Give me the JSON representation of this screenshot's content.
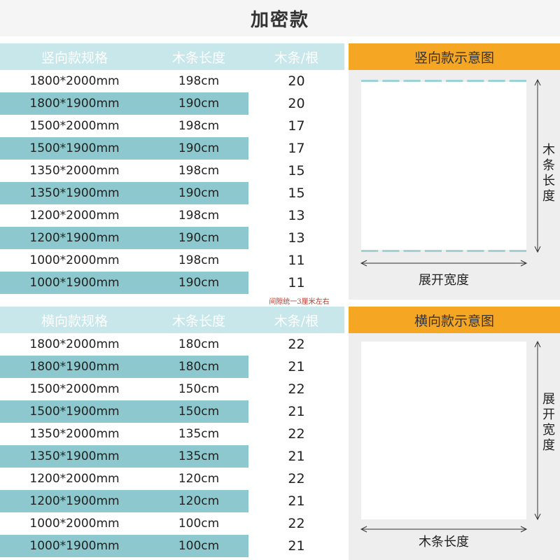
{
  "title": "加密款",
  "vertical": {
    "headers": [
      "竖向款规格",
      "木条长度",
      "木条/根"
    ],
    "rows": [
      [
        "1800*2000mm",
        "198cm",
        "20"
      ],
      [
        "1800*1900mm",
        "190cm",
        "20"
      ],
      [
        "1500*2000mm",
        "198cm",
        "17"
      ],
      [
        "1500*1900mm",
        "190cm",
        "17"
      ],
      [
        "1350*2000mm",
        "198cm",
        "15"
      ],
      [
        "1350*1900mm",
        "190cm",
        "15"
      ],
      [
        "1200*2000mm",
        "198cm",
        "13"
      ],
      [
        "1200*1900mm",
        "190cm",
        "13"
      ],
      [
        "1000*2000mm",
        "198cm",
        "11"
      ],
      [
        "1000*1900mm",
        "190cm",
        "11"
      ]
    ],
    "diagram_title": "竖向款示意图",
    "side_label": "木条长度",
    "bottom_label": "展开宽度"
  },
  "gap_note": "间隙统一3厘米左右",
  "horizontal": {
    "headers": [
      "横向款规格",
      "木条长度",
      "木条/根"
    ],
    "rows": [
      [
        "1800*2000mm",
        "180cm",
        "22"
      ],
      [
        "1800*1900mm",
        "180cm",
        "21"
      ],
      [
        "1500*2000mm",
        "150cm",
        "22"
      ],
      [
        "1500*1900mm",
        "150cm",
        "21"
      ],
      [
        "1350*2000mm",
        "135cm",
        "22"
      ],
      [
        "1350*1900mm",
        "135cm",
        "21"
      ],
      [
        "1200*2000mm",
        "120cm",
        "22"
      ],
      [
        "1200*1900mm",
        "120cm",
        "21"
      ],
      [
        "1000*2000mm",
        "100cm",
        "22"
      ],
      [
        "1000*1900mm",
        "100cm",
        "21"
      ]
    ],
    "diagram_title": "横向款示意图",
    "side_label": "展开宽度",
    "bottom_label": "木条长度"
  },
  "colors": {
    "teal": "#8cc8cd",
    "header_teal": "#c7e7ea",
    "orange": "#f5a623",
    "slat": "#9fd2d6",
    "note_red": "#c0392b"
  }
}
